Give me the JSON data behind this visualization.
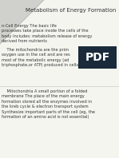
{
  "title": "Metabolism of Energy Formation",
  "background_color": "#f5f5f0",
  "title_fontsize": 5.0,
  "body_fontsize": 3.6,
  "title_color": "#333333",
  "text_color": "#333333",
  "pdf_badge_bg": "#1a2a3a",
  "pdf_text_color": "#ffffff",
  "triangle_color": "#d0d0cc",
  "triangle_shadow": "#b0b0aa",
  "paragraph1": "n-Cell Energy The basic life\nprocesses take place inside the cells of the\nbody Includes: metabolism release of energy\nderived from nutrients",
  "paragraph2": "    The mitochondria are the prim\noxygen use in the cell and are res\nmost of the metabolic energy (ad\ntriphosphate,or ATP) produced in cells",
  "paragraph3": "    Mitochondria A small portion of a folded\nmembrane The place of the main energy\nformation stored all the enzymes involved in\nthe kreb cycle & electron transport system\nSynthesize important parts of the cell (eg, the\nformation of an amino acid is not essential)"
}
